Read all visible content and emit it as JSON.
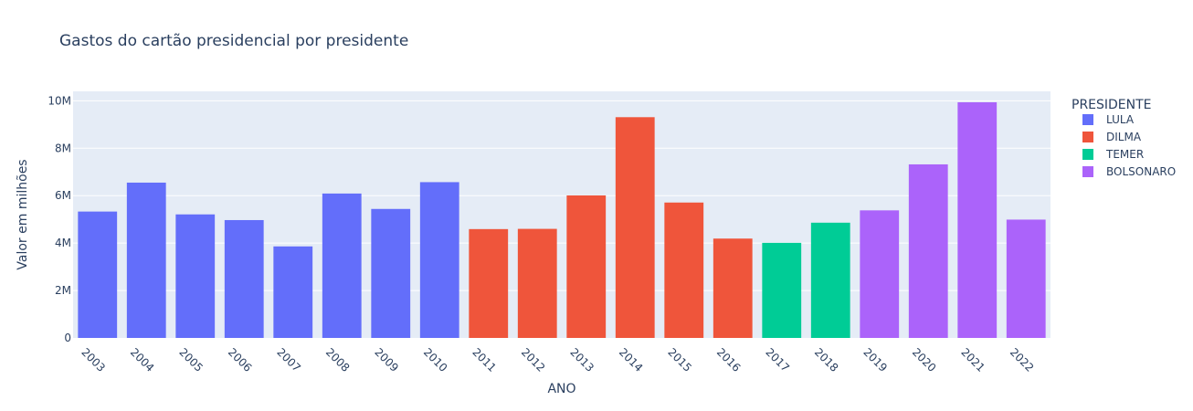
{
  "chart_data": {
    "type": "bar",
    "title": "Gastos do cartão presidencial por presidente",
    "xlabel": "ANO",
    "ylabel": "Valor em milhões",
    "ylim": [
      0,
      10400000
    ],
    "y_ticks": [
      {
        "value": 0,
        "label": "0"
      },
      {
        "value": 2000000,
        "label": "2M"
      },
      {
        "value": 4000000,
        "label": "4M"
      },
      {
        "value": 6000000,
        "label": "6M"
      },
      {
        "value": 8000000,
        "label": "8M"
      },
      {
        "value": 10000000,
        "label": "10M"
      }
    ],
    "grid": true,
    "legend_title": "PRESIDENTE",
    "legend_placement": "right",
    "series": [
      {
        "name": "LULA",
        "color": "#636efa"
      },
      {
        "name": "DILMA",
        "color": "#ef553b"
      },
      {
        "name": "TEMER",
        "color": "#00cc96"
      },
      {
        "name": "BOLSONARO",
        "color": "#ab63fa"
      }
    ],
    "bars": [
      {
        "category": "2003",
        "value": 5330000,
        "series": "LULA"
      },
      {
        "category": "2004",
        "value": 6550000,
        "series": "LULA"
      },
      {
        "category": "2005",
        "value": 5210000,
        "series": "LULA"
      },
      {
        "category": "2006",
        "value": 4970000,
        "series": "LULA"
      },
      {
        "category": "2007",
        "value": 3860000,
        "series": "LULA"
      },
      {
        "category": "2008",
        "value": 6090000,
        "series": "LULA"
      },
      {
        "category": "2009",
        "value": 5440000,
        "series": "LULA"
      },
      {
        "category": "2010",
        "value": 6570000,
        "series": "LULA"
      },
      {
        "category": "2011",
        "value": 4590000,
        "series": "DILMA"
      },
      {
        "category": "2012",
        "value": 4600000,
        "series": "DILMA"
      },
      {
        "category": "2013",
        "value": 6010000,
        "series": "DILMA"
      },
      {
        "category": "2014",
        "value": 9310000,
        "series": "DILMA"
      },
      {
        "category": "2015",
        "value": 5710000,
        "series": "DILMA"
      },
      {
        "category": "2016",
        "value": 4190000,
        "series": "DILMA"
      },
      {
        "category": "2017",
        "value": 4010000,
        "series": "TEMER"
      },
      {
        "category": "2018",
        "value": 4860000,
        "series": "TEMER"
      },
      {
        "category": "2019",
        "value": 5380000,
        "series": "BOLSONARO"
      },
      {
        "category": "2020",
        "value": 7320000,
        "series": "BOLSONARO"
      },
      {
        "category": "2021",
        "value": 9940000,
        "series": "BOLSONARO"
      },
      {
        "category": "2022",
        "value": 4990000,
        "series": "BOLSONARO"
      }
    ],
    "plot_background": "#e5ecf6"
  }
}
